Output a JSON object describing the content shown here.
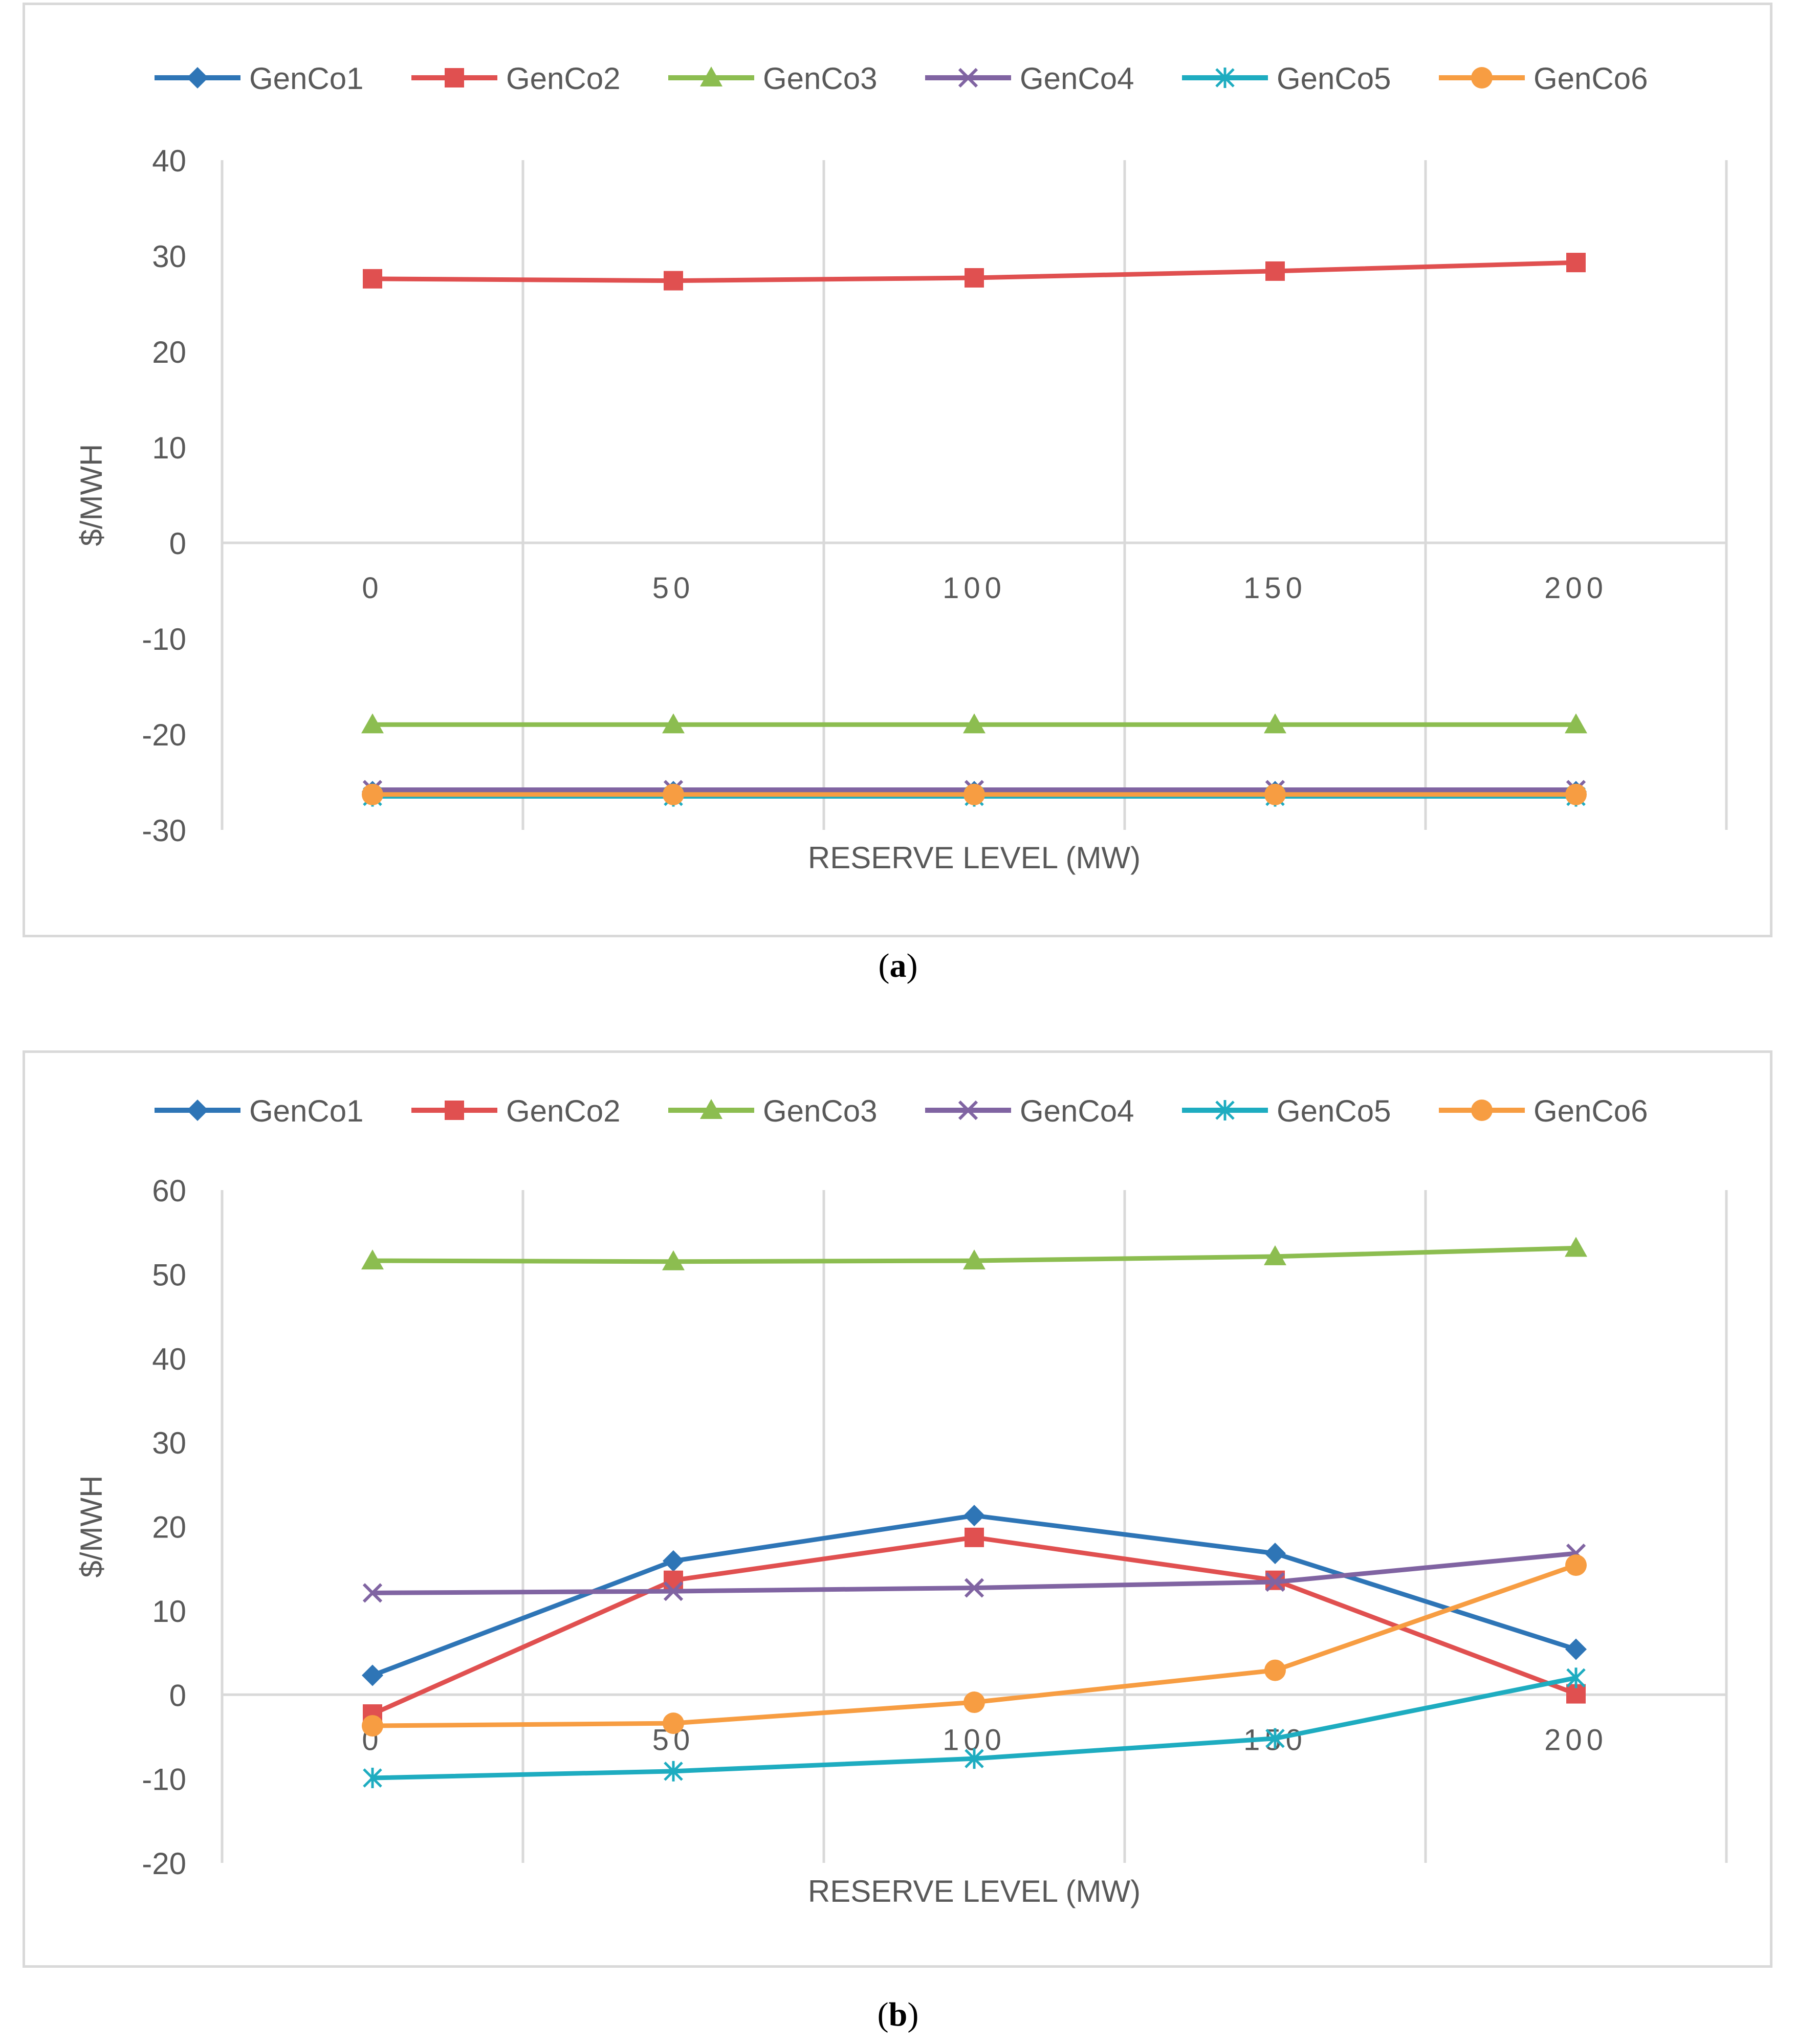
{
  "chart_data": [
    {
      "id": "a",
      "type": "line",
      "caption_letter": "a",
      "xlabel": "RESERVE LEVEL (MW)",
      "ylabel": "$/MWH",
      "categories": [
        "0",
        "50",
        "100",
        "150",
        "200"
      ],
      "ylim": [
        -30,
        40
      ],
      "yticks": [
        40,
        30,
        20,
        10,
        0,
        -10,
        -20,
        -30
      ],
      "ytick_labels": [
        "40",
        "30",
        "20",
        "10",
        "0",
        "-10",
        "-20",
        "-30"
      ],
      "grid": "vertical",
      "legend_position": "top",
      "series": [
        {
          "name": "GenCo1",
          "color": "#2e75b6",
          "marker": "diamond",
          "values": [
            -26.0,
            -26.0,
            -26.0,
            -26.0,
            -26.0
          ]
        },
        {
          "name": "GenCo2",
          "color": "#e05050",
          "marker": "square",
          "values": [
            27.6,
            27.4,
            27.7,
            28.4,
            29.3
          ]
        },
        {
          "name": "GenCo3",
          "color": "#8cbd50",
          "marker": "triangle",
          "values": [
            -19.0,
            -19.0,
            -19.0,
            -19.0,
            -19.0
          ]
        },
        {
          "name": "GenCo4",
          "color": "#8064a2",
          "marker": "x",
          "values": [
            -25.8,
            -25.8,
            -25.8,
            -25.8,
            -25.8
          ]
        },
        {
          "name": "GenCo5",
          "color": "#1eacc0",
          "marker": "asterisk",
          "values": [
            -26.5,
            -26.5,
            -26.5,
            -26.5,
            -26.5
          ]
        },
        {
          "name": "GenCo6",
          "color": "#f79d42",
          "marker": "circle",
          "values": [
            -26.3,
            -26.3,
            -26.3,
            -26.3,
            -26.3
          ]
        }
      ]
    },
    {
      "id": "b",
      "type": "line",
      "caption_letter": "b",
      "xlabel": "RESERVE LEVEL (MW)",
      "ylabel": "$/MWH",
      "categories": [
        "0",
        "50",
        "100",
        "150",
        "200"
      ],
      "ylim": [
        -20,
        60
      ],
      "yticks": [
        60,
        50,
        40,
        30,
        20,
        10,
        0,
        -10,
        -20
      ],
      "ytick_labels": [
        "60",
        "50",
        "40",
        "30",
        "20",
        "10",
        "0",
        "-10",
        "-20"
      ],
      "grid": "vertical",
      "legend_position": "top",
      "series": [
        {
          "name": "GenCo1",
          "color": "#2e75b6",
          "marker": "diamond",
          "values": [
            2.3,
            15.9,
            21.3,
            16.8,
            5.4
          ]
        },
        {
          "name": "GenCo2",
          "color": "#e05050",
          "marker": "square",
          "values": [
            -2.3,
            13.6,
            18.7,
            13.6,
            0.1
          ]
        },
        {
          "name": "GenCo3",
          "color": "#8cbd50",
          "marker": "triangle",
          "values": [
            51.6,
            51.5,
            51.6,
            52.1,
            53.1
          ]
        },
        {
          "name": "GenCo4",
          "color": "#8064a2",
          "marker": "x",
          "values": [
            12.1,
            12.3,
            12.7,
            13.4,
            16.8
          ]
        },
        {
          "name": "GenCo5",
          "color": "#1eacc0",
          "marker": "asterisk",
          "values": [
            -9.9,
            -9.1,
            -7.6,
            -5.2,
            2.0
          ]
        },
        {
          "name": "GenCo6",
          "color": "#f79d42",
          "marker": "circle",
          "values": [
            -3.7,
            -3.4,
            -0.9,
            2.9,
            15.4
          ]
        }
      ]
    }
  ]
}
